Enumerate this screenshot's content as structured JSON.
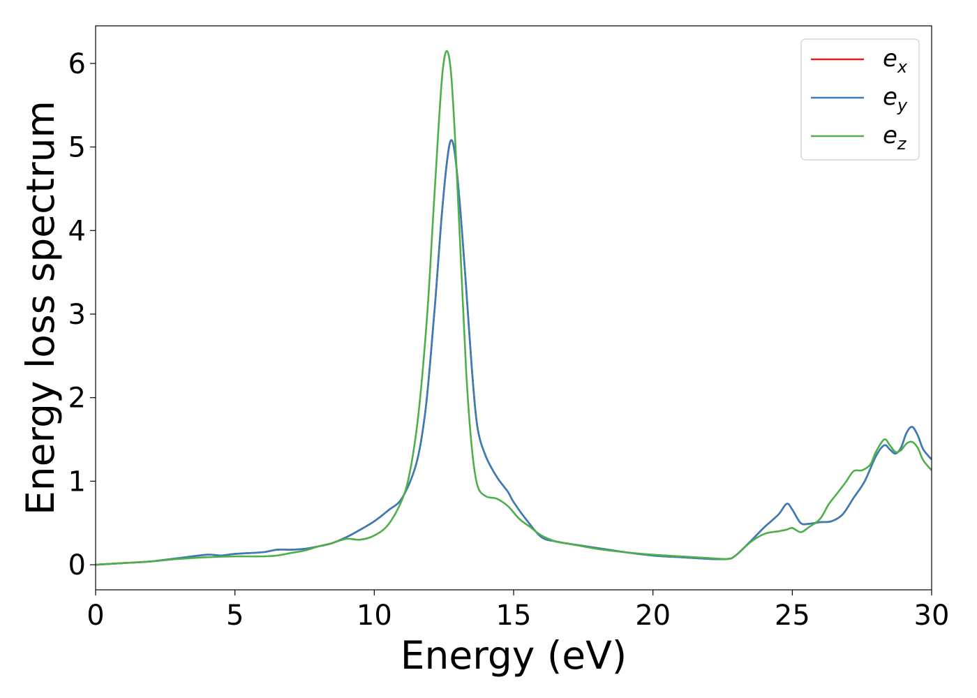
{
  "chart_data": {
    "type": "line",
    "xlabel": "Energy (eV)",
    "ylabel": "Energy loss spectrum",
    "xlim": [
      0,
      30
    ],
    "ylim": [
      -0.3,
      6.45
    ],
    "xticks": [
      0,
      5,
      10,
      15,
      20,
      25,
      30
    ],
    "yticks": [
      0,
      1,
      2,
      3,
      4,
      5,
      6
    ],
    "grid": false,
    "legend_position": "top-right",
    "series": [
      {
        "name": "e_x",
        "label_base": "e",
        "label_sub": "x",
        "color": "#e41a1c",
        "x": [
          0,
          1,
          2,
          3,
          4,
          4.5,
          5,
          6,
          6.5,
          7,
          7.5,
          8,
          8.5,
          9,
          9.5,
          10,
          10.5,
          11,
          11.5,
          11.8,
          12,
          12.2,
          12.4,
          12.6,
          12.75,
          12.9,
          13.1,
          13.3,
          13.5,
          13.7,
          14,
          14.4,
          14.8,
          15,
          15.5,
          16,
          16.5,
          17,
          18,
          19,
          20,
          21,
          22,
          22.7,
          23,
          23.5,
          24,
          24.5,
          24.8,
          25,
          25.3,
          25.6,
          26,
          26.4,
          26.8,
          27.2,
          27.6,
          28,
          28.3,
          28.5,
          28.7,
          28.9,
          29.1,
          29.3,
          29.5,
          29.7,
          30
        ],
        "y": [
          0.0,
          0.02,
          0.04,
          0.08,
          0.12,
          0.11,
          0.13,
          0.15,
          0.18,
          0.18,
          0.19,
          0.22,
          0.26,
          0.33,
          0.42,
          0.52,
          0.65,
          0.8,
          1.2,
          1.75,
          2.4,
          3.2,
          4.1,
          4.8,
          5.08,
          4.9,
          4.2,
          3.3,
          2.35,
          1.65,
          1.3,
          1.05,
          0.87,
          0.75,
          0.52,
          0.33,
          0.28,
          0.25,
          0.2,
          0.15,
          0.11,
          0.09,
          0.07,
          0.07,
          0.12,
          0.28,
          0.45,
          0.6,
          0.73,
          0.66,
          0.5,
          0.49,
          0.51,
          0.52,
          0.6,
          0.8,
          1.0,
          1.3,
          1.43,
          1.38,
          1.33,
          1.4,
          1.58,
          1.65,
          1.55,
          1.38,
          1.26
        ]
      },
      {
        "name": "e_y",
        "label_base": "e",
        "label_sub": "y",
        "color": "#377eb8",
        "x": [
          0,
          1,
          2,
          3,
          4,
          4.5,
          5,
          6,
          6.5,
          7,
          7.5,
          8,
          8.5,
          9,
          9.5,
          10,
          10.5,
          11,
          11.5,
          11.8,
          12,
          12.2,
          12.4,
          12.6,
          12.75,
          12.9,
          13.1,
          13.3,
          13.5,
          13.7,
          14,
          14.4,
          14.8,
          15,
          15.5,
          16,
          16.5,
          17,
          18,
          19,
          20,
          21,
          22,
          22.7,
          23,
          23.5,
          24,
          24.5,
          24.8,
          25,
          25.3,
          25.6,
          26,
          26.4,
          26.8,
          27.2,
          27.6,
          28,
          28.3,
          28.5,
          28.7,
          28.9,
          29.1,
          29.3,
          29.5,
          29.7,
          30
        ],
        "y": [
          0.0,
          0.02,
          0.04,
          0.08,
          0.12,
          0.11,
          0.13,
          0.15,
          0.18,
          0.18,
          0.19,
          0.22,
          0.26,
          0.33,
          0.42,
          0.52,
          0.65,
          0.8,
          1.2,
          1.75,
          2.4,
          3.2,
          4.1,
          4.8,
          5.08,
          4.9,
          4.2,
          3.3,
          2.35,
          1.65,
          1.3,
          1.05,
          0.87,
          0.75,
          0.52,
          0.33,
          0.28,
          0.25,
          0.2,
          0.15,
          0.11,
          0.09,
          0.07,
          0.07,
          0.12,
          0.28,
          0.45,
          0.6,
          0.73,
          0.66,
          0.5,
          0.49,
          0.51,
          0.52,
          0.6,
          0.8,
          1.0,
          1.3,
          1.43,
          1.38,
          1.33,
          1.4,
          1.58,
          1.65,
          1.55,
          1.38,
          1.26
        ]
      },
      {
        "name": "e_z",
        "label_base": "e",
        "label_sub": "z",
        "color": "#4daf4a",
        "x": [
          0,
          1,
          2,
          3,
          4,
          5,
          6,
          6.5,
          7,
          7.5,
          8,
          8.5,
          9,
          9.5,
          10,
          10.5,
          11,
          11.3,
          11.6,
          11.9,
          12.1,
          12.3,
          12.45,
          12.6,
          12.75,
          12.9,
          13.1,
          13.3,
          13.5,
          13.7,
          14,
          14.4,
          14.8,
          15.2,
          15.6,
          16,
          16.5,
          17,
          18,
          19,
          20,
          21,
          22,
          22.7,
          23,
          23.5,
          24,
          24.5,
          24.8,
          25,
          25.3,
          25.6,
          26,
          26.3,
          26.6,
          26.9,
          27.2,
          27.5,
          27.8,
          28,
          28.3,
          28.5,
          28.7,
          28.9,
          29.1,
          29.3,
          29.5,
          29.7,
          30
        ],
        "y": [
          0.0,
          0.02,
          0.04,
          0.07,
          0.09,
          0.1,
          0.1,
          0.11,
          0.14,
          0.17,
          0.22,
          0.26,
          0.31,
          0.3,
          0.35,
          0.48,
          0.78,
          1.15,
          1.85,
          3.0,
          4.1,
          5.2,
          5.9,
          6.15,
          5.9,
          5.1,
          3.7,
          2.3,
          1.4,
          0.95,
          0.82,
          0.79,
          0.7,
          0.55,
          0.45,
          0.35,
          0.28,
          0.25,
          0.19,
          0.15,
          0.12,
          0.1,
          0.08,
          0.07,
          0.12,
          0.27,
          0.37,
          0.4,
          0.42,
          0.44,
          0.39,
          0.45,
          0.55,
          0.72,
          0.85,
          0.98,
          1.12,
          1.13,
          1.2,
          1.35,
          1.5,
          1.43,
          1.35,
          1.37,
          1.45,
          1.47,
          1.4,
          1.25,
          1.13
        ]
      }
    ]
  }
}
